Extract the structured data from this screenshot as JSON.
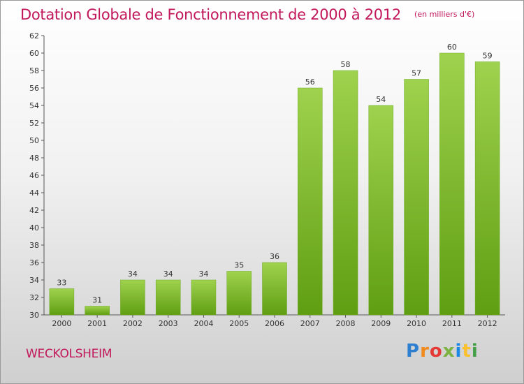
{
  "chart_data": {
    "type": "bar",
    "title": "Dotation Globale de Fonctionnement de 2000 à 2012",
    "unit_note": "(en milliers d'€)",
    "categories": [
      "2000",
      "2001",
      "2002",
      "2003",
      "2004",
      "2005",
      "2006",
      "2007",
      "2008",
      "2009",
      "2010",
      "2011",
      "2012"
    ],
    "values": [
      33,
      31,
      34,
      34,
      34,
      35,
      36,
      56,
      58,
      54,
      57,
      60,
      59
    ],
    "ylim": [
      30,
      62
    ],
    "yticks": [
      30,
      32,
      34,
      36,
      38,
      40,
      42,
      44,
      46,
      48,
      50,
      52,
      54,
      56,
      58,
      60,
      62
    ],
    "grid": false,
    "bar_color": "#7dbd2a"
  },
  "footer": {
    "commune": "WECKOLSHEIM",
    "brand": "Proxiti",
    "brand_colors": [
      "#2f7fd1",
      "#f08a1c",
      "#e53935",
      "#7cb342",
      "#1e88e5",
      "#fbc02d",
      "#43a047"
    ]
  }
}
